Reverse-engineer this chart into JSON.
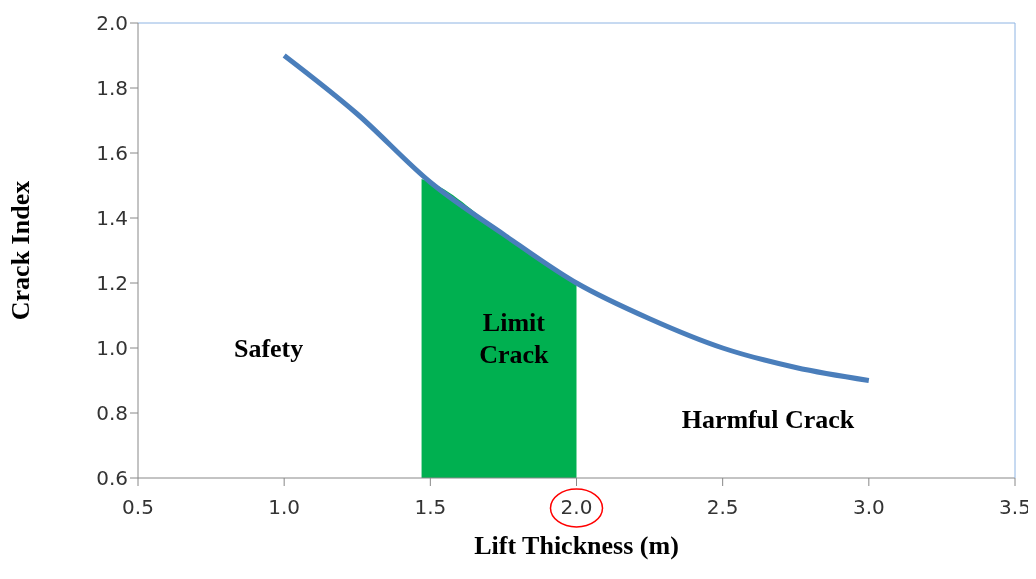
{
  "chart_data": {
    "type": "line",
    "xlabel": "Lift Thickness (m)",
    "ylabel": "Crack Index",
    "xlim": [
      0.5,
      3.5
    ],
    "xticks": [
      {
        "value": 0.5,
        "label": "0.5"
      },
      {
        "value": 1,
        "label": "1.0"
      },
      {
        "value": 1.5,
        "label": "1.5"
      },
      {
        "value": 2,
        "label": "2.0"
      },
      {
        "value": 2.5,
        "label": "2.5"
      },
      {
        "value": 3,
        "label": "3.0"
      },
      {
        "value": 3.5,
        "label": "3.5"
      }
    ],
    "ylim": [
      0.6,
      2.0
    ],
    "yticks": [
      {
        "value": 0.6,
        "label": "0.6"
      },
      {
        "value": 0.8,
        "label": "0.8"
      },
      {
        "value": 1,
        "label": "1.0"
      },
      {
        "value": 1.2,
        "label": "1.2"
      },
      {
        "value": 1.4,
        "label": "1.4"
      },
      {
        "value": 1.6,
        "label": "1.6"
      },
      {
        "value": 1.8,
        "label": "1.8"
      },
      {
        "value": 2,
        "label": "2.0"
      }
    ],
    "grid": false,
    "marker": "none",
    "line_style": "solid",
    "series": [
      {
        "color": "#4a7ebb",
        "x": [
          1.0,
          1.25,
          1.5,
          1.75,
          2.0,
          2.25,
          2.5,
          2.75,
          3.0
        ],
        "values": [
          1.9,
          1.72,
          1.51,
          1.35,
          1.2,
          1.09,
          1.0,
          0.94,
          0.9
        ]
      },
      {
        "type": "area",
        "color": "#00b050",
        "x": [
          1.47,
          1.5,
          1.75,
          2.0
        ],
        "values": [
          1.52,
          1.51,
          1.35,
          1.2
        ]
      }
    ],
    "annotations": [
      "Safety",
      "Limit\nCrack",
      "Harmful Crack"
    ]
  }
}
